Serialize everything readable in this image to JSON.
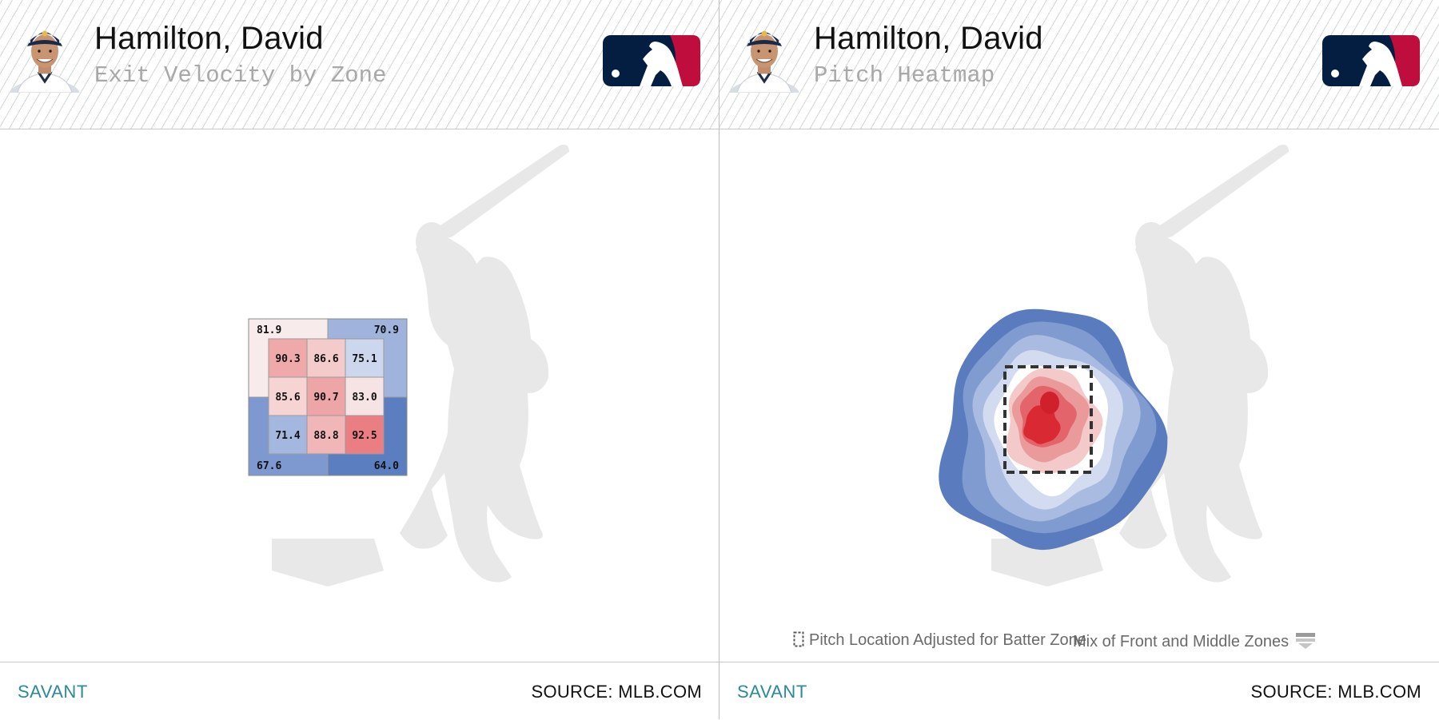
{
  "panels": [
    {
      "player_name": "Hamilton, David",
      "chart_title": "Exit Velocity by Zone",
      "footer": {
        "brand": "SAVANT",
        "source": "SOURCE: MLB.COM"
      }
    },
    {
      "player_name": "Hamilton, David",
      "chart_title": "Pitch Heatmap",
      "legend": {
        "item1": "Pitch Location Adjusted for Batter Zone",
        "item2": "Mix of Front and Middle Zones"
      },
      "footer": {
        "brand": "SAVANT",
        "source": "SOURCE: MLB.COM"
      }
    }
  ],
  "colors": {
    "cool_dark": "#5b7ec0",
    "cool_mid": "#8ea6d6",
    "cool_light": "#c8d3ec",
    "neutral": "#f7f7f7",
    "warm_light": "#f6d6d6",
    "warm_mid": "#eea6a8",
    "warm_dark": "#e2323c",
    "silhouette": "#e8e8e8",
    "savant_link": "#2a8a9a",
    "mlb_navy": "#041e42",
    "mlb_red": "#bf0d3e"
  },
  "chart_data": [
    {
      "type": "heatmap",
      "title": "Exit Velocity by Zone",
      "metric": "Exit Velocity",
      "inner_grid": [
        [
          90.3,
          86.6,
          75.1
        ],
        [
          85.6,
          90.7,
          83.0
        ],
        [
          71.4,
          88.8,
          92.5
        ]
      ],
      "outer_zones": {
        "top_left": 81.9,
        "top_right": 70.9,
        "bottom_left": 67.6,
        "bottom_right": 64.0
      },
      "labels": {
        "inner": [
          [
            "90.3",
            "86.6",
            "75.1"
          ],
          [
            "85.6",
            "90.7",
            "83.0"
          ],
          [
            "71.4",
            "88.8",
            "92.5"
          ]
        ],
        "outer": {
          "top_left": "81.9",
          "top_right": "70.9",
          "bottom_left": "67.6",
          "bottom_right": "64.0"
        }
      },
      "color_scale": "blue-white-red"
    },
    {
      "type": "heatmap",
      "title": "Pitch Heatmap",
      "metric": "Pitch density",
      "levels": [
        0.12,
        0.24,
        0.36,
        0.48,
        0.6,
        0.72,
        0.84,
        0.96
      ],
      "color_scale": "blue-white-red",
      "strike_zone": "dashed box"
    }
  ]
}
